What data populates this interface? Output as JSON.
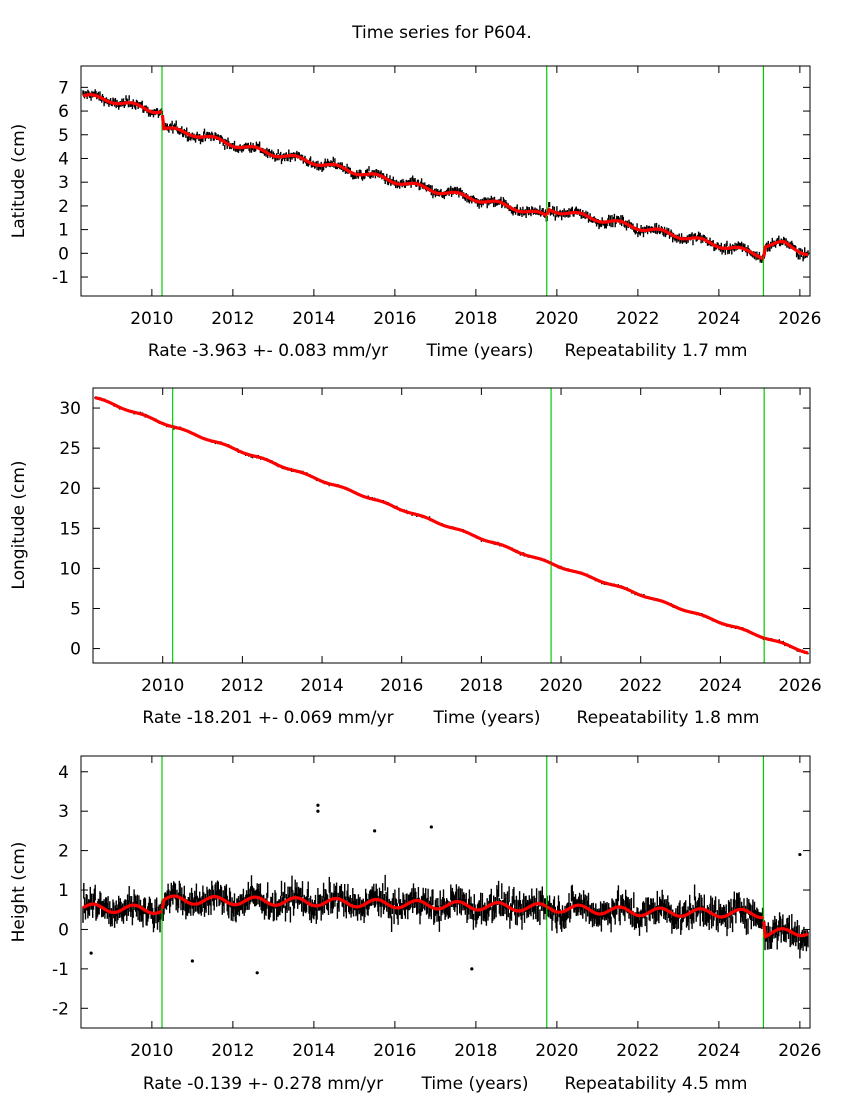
{
  "page_title": "Time series for P604.",
  "colors": {
    "data_points": "#000000",
    "model_fit": "#ff0000",
    "event_lines": "#00cc00",
    "frame": "#000000",
    "background": "#ffffff"
  },
  "chart_data": [
    {
      "type": "scatter",
      "ylabel": "Latitude (cm)",
      "xlabel": "Time (years)",
      "rate_text": "Rate -3.963 +- 0.083 mm/yr",
      "repeatability_text": "Repeatability 1.7 mm",
      "xlim": [
        2008.25,
        2026.25
      ],
      "ylim": [
        -1.8,
        7.9
      ],
      "x_ticks": [
        2010,
        2012,
        2014,
        2016,
        2018,
        2020,
        2022,
        2024,
        2026
      ],
      "y_ticks": [
        -1,
        0,
        1,
        2,
        3,
        4,
        5,
        6,
        7
      ],
      "event_lines": [
        2010.25,
        2019.75,
        2025.1
      ],
      "series": [
        {
          "role": "observations",
          "noise_cm": 0.22,
          "x": [
            2008.3,
            2009.0,
            2010.0,
            2010.25,
            2010.3,
            2011.0,
            2012.0,
            2013.0,
            2014.0,
            2015.0,
            2016.0,
            2017.0,
            2018.0,
            2019.0,
            2019.75,
            2019.8,
            2020.0,
            2021.0,
            2022.0,
            2023.0,
            2024.0,
            2025.0,
            2025.1,
            2025.15,
            2025.6,
            2026.2
          ],
          "y": [
            6.65,
            6.45,
            6.05,
            6.0,
            5.25,
            5.05,
            4.6,
            4.2,
            3.85,
            3.45,
            3.05,
            2.65,
            2.3,
            1.9,
            1.55,
            1.85,
            1.8,
            1.45,
            1.1,
            0.75,
            0.35,
            -0.05,
            -0.15,
            0.35,
            0.4,
            0.0
          ]
        },
        {
          "role": "model",
          "x": [
            2008.3,
            2009.0,
            2010.0,
            2010.25,
            2010.3,
            2011.0,
            2012.0,
            2013.0,
            2014.0,
            2015.0,
            2016.0,
            2017.0,
            2018.0,
            2019.0,
            2019.75,
            2019.8,
            2020.0,
            2021.0,
            2022.0,
            2023.0,
            2024.0,
            2025.0,
            2025.1,
            2025.15,
            2025.6,
            2026.2
          ],
          "y": [
            6.65,
            6.45,
            6.05,
            6.0,
            5.25,
            5.05,
            4.6,
            4.2,
            3.85,
            3.45,
            3.05,
            2.65,
            2.3,
            1.9,
            1.55,
            1.85,
            1.8,
            1.45,
            1.1,
            0.75,
            0.35,
            -0.05,
            -0.15,
            0.35,
            0.4,
            0.0
          ]
        }
      ]
    },
    {
      "type": "scatter",
      "ylabel": "Longitude (cm)",
      "xlabel": "Time (years)",
      "rate_text": "Rate -18.201 +- 0.069 mm/yr",
      "repeatability_text": "Repeatability 1.8 mm",
      "xlim": [
        2008.25,
        2026.25
      ],
      "ylim": [
        -1.8,
        32.5
      ],
      "x_ticks": [
        2010,
        2012,
        2014,
        2016,
        2018,
        2020,
        2022,
        2024,
        2026
      ],
      "y_ticks": [
        0,
        5,
        10,
        15,
        20,
        25,
        30
      ],
      "event_lines": [
        2010.25,
        2019.75,
        2025.1
      ],
      "series": [
        {
          "role": "observations",
          "noise_cm": 0.2,
          "x": [
            2008.3,
            2010.25,
            2019.75,
            2025.1,
            2026.2
          ],
          "y": [
            31.3,
            27.7,
            10.6,
            1.4,
            -0.5
          ]
        },
        {
          "role": "model",
          "x": [
            2008.3,
            2010.25,
            2019.75,
            2025.1,
            2026.2
          ],
          "y": [
            31.3,
            27.7,
            10.6,
            1.4,
            -0.5
          ]
        }
      ]
    },
    {
      "type": "scatter",
      "ylabel": "Height (cm)",
      "xlabel": "Time (years)",
      "rate_text": "Rate -0.139 +- 0.278 mm/yr",
      "repeatability_text": "Repeatability 4.5 mm",
      "xlim": [
        2008.25,
        2026.25
      ],
      "ylim": [
        -2.5,
        4.4
      ],
      "x_ticks": [
        2010,
        2012,
        2014,
        2016,
        2018,
        2020,
        2022,
        2024,
        2026
      ],
      "y_ticks": [
        -2,
        -1,
        0,
        1,
        2,
        3,
        4
      ],
      "event_lines": [
        2010.25,
        2019.75,
        2025.1
      ],
      "outliers": {
        "x": [
          2014.1,
          2014.1,
          2016.9,
          2015.5,
          2012.6,
          2008.5,
          2026.0,
          2017.9,
          2011.0
        ],
        "y": [
          3.15,
          3.0,
          2.6,
          2.5,
          -1.1,
          -0.6,
          1.9,
          -1.0,
          -0.8
        ]
      },
      "series": [
        {
          "role": "observations",
          "noise_cm": 0.4,
          "x": [
            2008.3,
            2010.25,
            2010.3,
            2014.0,
            2019.75,
            2022.0,
            2025.1,
            2025.15,
            2026.2
          ],
          "y": [
            0.55,
            0.5,
            0.75,
            0.7,
            0.55,
            0.45,
            0.4,
            -0.1,
            -0.05
          ]
        },
        {
          "role": "model",
          "x": [
            2008.3,
            2010.25,
            2010.3,
            2014.0,
            2019.75,
            2022.0,
            2025.1,
            2025.15,
            2026.2
          ],
          "y": [
            0.55,
            0.5,
            0.75,
            0.7,
            0.55,
            0.45,
            0.4,
            -0.1,
            -0.05
          ]
        }
      ]
    }
  ]
}
